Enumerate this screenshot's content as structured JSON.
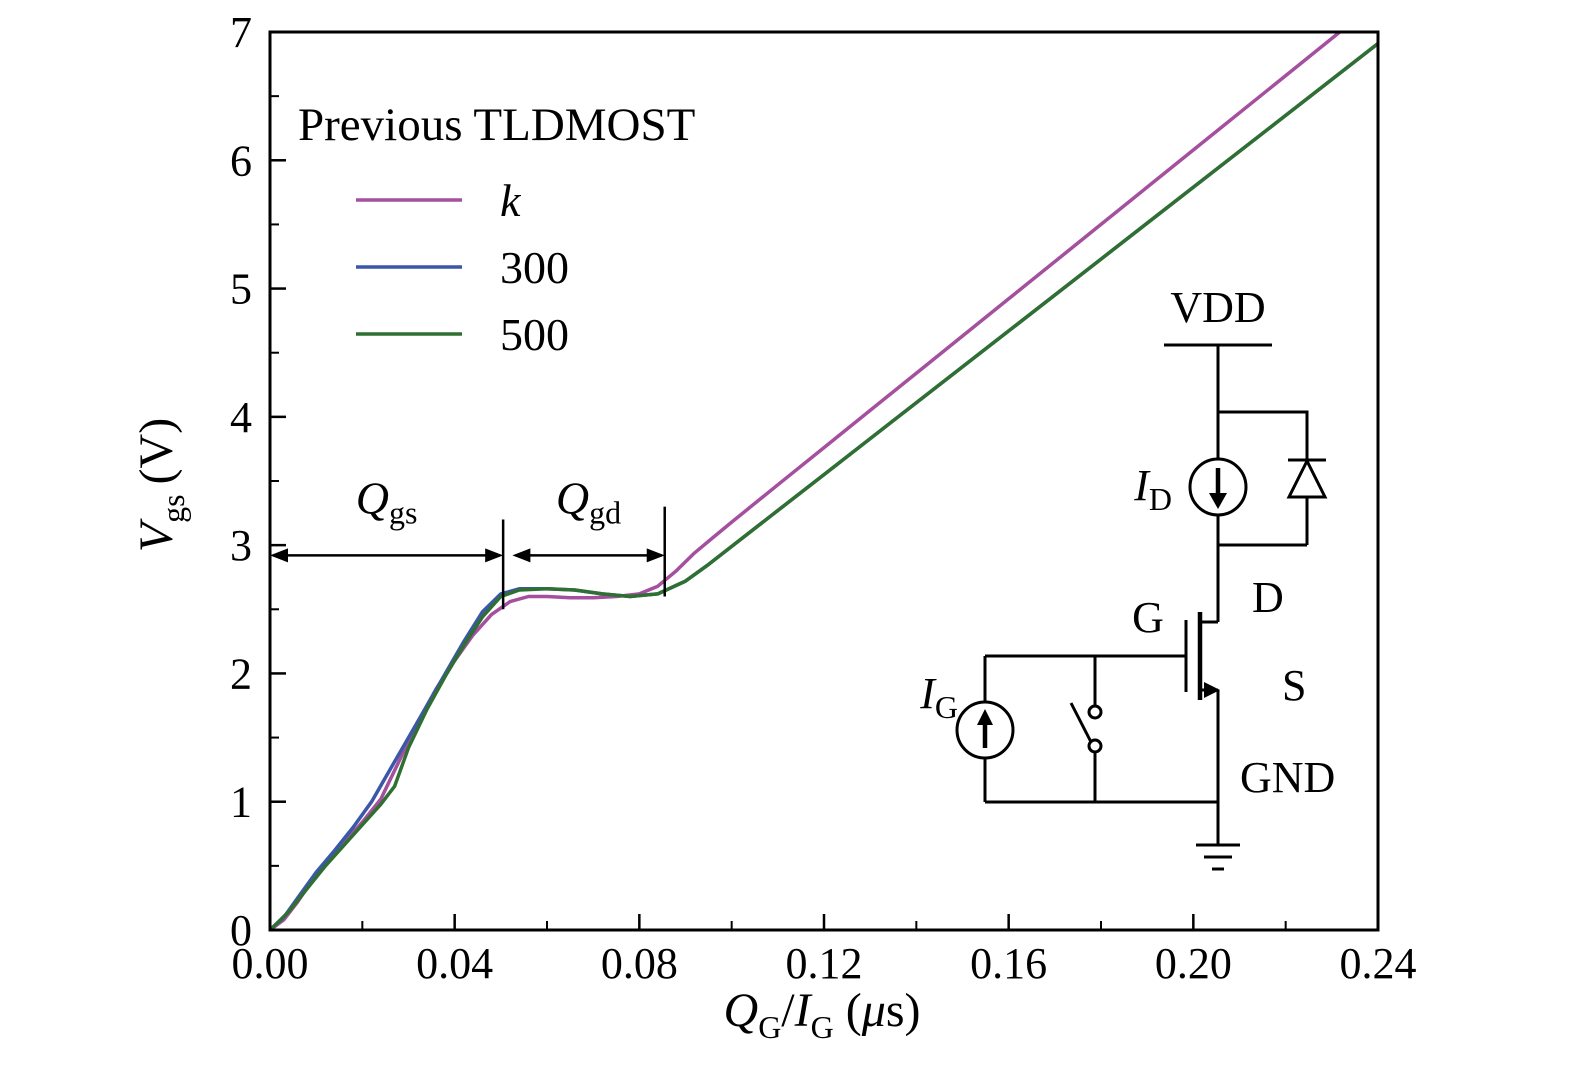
{
  "chart_data": {
    "type": "line",
    "title": "",
    "xlabel": "Q_G/I_G (us)",
    "ylabel": "V_gs (V)",
    "xlim": [
      0,
      0.24
    ],
    "ylim": [
      0,
      7
    ],
    "x_ticks": [
      0,
      0.04,
      0.08,
      0.12,
      0.16,
      0.2,
      0.24
    ],
    "x_tick_labels": [
      "0.00",
      "0.04",
      "0.08",
      "0.12",
      "0.16",
      "0.20",
      "0.24"
    ],
    "x_minor_step": 0.02,
    "y_ticks": [
      0,
      1,
      2,
      3,
      4,
      5,
      6,
      7
    ],
    "y_tick_labels": [
      "0",
      "1",
      "2",
      "3",
      "4",
      "5",
      "6",
      "7"
    ],
    "y_minor_step": 0.5,
    "grid": false,
    "legend_position": "upper-left",
    "series": [
      {
        "name": "k",
        "color": "#a4509e",
        "points": [
          [
            0,
            0
          ],
          [
            0.003,
            0.08
          ],
          [
            0.006,
            0.22
          ],
          [
            0.009,
            0.38
          ],
          [
            0.012,
            0.52
          ],
          [
            0.016,
            0.68
          ],
          [
            0.02,
            0.84
          ],
          [
            0.024,
            1.02
          ],
          [
            0.028,
            1.32
          ],
          [
            0.032,
            1.62
          ],
          [
            0.036,
            1.88
          ],
          [
            0.04,
            2.1
          ],
          [
            0.044,
            2.3
          ],
          [
            0.048,
            2.46
          ],
          [
            0.052,
            2.56
          ],
          [
            0.056,
            2.6
          ],
          [
            0.06,
            2.6
          ],
          [
            0.065,
            2.59
          ],
          [
            0.07,
            2.59
          ],
          [
            0.075,
            2.6
          ],
          [
            0.08,
            2.62
          ],
          [
            0.084,
            2.68
          ],
          [
            0.088,
            2.8
          ],
          [
            0.092,
            2.94
          ],
          [
            0.096,
            3.06
          ],
          [
            0.1,
            3.18
          ],
          [
            0.11,
            3.47
          ],
          [
            0.12,
            3.76
          ],
          [
            0.14,
            4.34
          ],
          [
            0.16,
            4.92
          ],
          [
            0.18,
            5.5
          ],
          [
            0.2,
            6.08
          ],
          [
            0.22,
            6.66
          ],
          [
            0.24,
            7.24
          ]
        ]
      },
      {
        "name": "300",
        "color": "#3b57a8",
        "points": [
          [
            0,
            0
          ],
          [
            0.003,
            0.1
          ],
          [
            0.006,
            0.25
          ],
          [
            0.01,
            0.45
          ],
          [
            0.014,
            0.62
          ],
          [
            0.018,
            0.8
          ],
          [
            0.022,
            1.0
          ],
          [
            0.026,
            1.25
          ],
          [
            0.03,
            1.5
          ],
          [
            0.034,
            1.75
          ],
          [
            0.038,
            2.0
          ],
          [
            0.042,
            2.25
          ],
          [
            0.046,
            2.48
          ],
          [
            0.05,
            2.62
          ],
          [
            0.054,
            2.66
          ],
          [
            0.06,
            2.66
          ],
          [
            0.066,
            2.65
          ],
          [
            0.072,
            2.62
          ],
          [
            0.078,
            2.6
          ],
          [
            0.084,
            2.62
          ],
          [
            0.09,
            2.72
          ],
          [
            0.095,
            2.85
          ],
          [
            0.1,
            2.99
          ],
          [
            0.11,
            3.27
          ],
          [
            0.12,
            3.55
          ],
          [
            0.14,
            4.11
          ],
          [
            0.16,
            4.67
          ],
          [
            0.18,
            5.23
          ],
          [
            0.2,
            5.79
          ],
          [
            0.22,
            6.35
          ],
          [
            0.24,
            6.91
          ]
        ]
      },
      {
        "name": "500",
        "color": "#2f7032",
        "points": [
          [
            0,
            0
          ],
          [
            0.004,
            0.14
          ],
          [
            0.008,
            0.32
          ],
          [
            0.012,
            0.5
          ],
          [
            0.016,
            0.66
          ],
          [
            0.02,
            0.82
          ],
          [
            0.024,
            0.98
          ],
          [
            0.027,
            1.12
          ],
          [
            0.03,
            1.42
          ],
          [
            0.034,
            1.72
          ],
          [
            0.038,
            1.98
          ],
          [
            0.042,
            2.22
          ],
          [
            0.046,
            2.44
          ],
          [
            0.05,
            2.6
          ],
          [
            0.054,
            2.65
          ],
          [
            0.06,
            2.66
          ],
          [
            0.066,
            2.65
          ],
          [
            0.072,
            2.62
          ],
          [
            0.078,
            2.6
          ],
          [
            0.084,
            2.62
          ],
          [
            0.09,
            2.72
          ],
          [
            0.095,
            2.85
          ],
          [
            0.1,
            2.99
          ],
          [
            0.11,
            3.27
          ],
          [
            0.12,
            3.55
          ],
          [
            0.14,
            4.11
          ],
          [
            0.16,
            4.67
          ],
          [
            0.18,
            5.23
          ],
          [
            0.2,
            5.79
          ],
          [
            0.22,
            6.35
          ],
          [
            0.24,
            6.91
          ]
        ]
      }
    ],
    "annotations": {
      "spans": [
        {
          "label": "Q",
          "sub": "gs",
          "x1": 0,
          "x2": 0.0505,
          "y": 2.92
        },
        {
          "label": "Q",
          "sub": "gd",
          "x1": 0.0525,
          "x2": 0.0855,
          "y": 2.92
        }
      ],
      "markers": [
        {
          "x": 0.0505,
          "y1": 2.5,
          "y2": 3.2
        },
        {
          "x": 0.0855,
          "y1": 2.6,
          "y2": 3.3
        }
      ]
    }
  },
  "legend": {
    "title": "Previous TLDMOST"
  },
  "labels": {
    "y": {
      "v": "V",
      "sub": "gs",
      "unit": "(V)"
    },
    "x": {
      "q": "Q",
      "qsub": "G",
      "slash": "/",
      "i": "I",
      "isub": "G",
      "open": "(",
      "mu": "μ",
      "close": "s)"
    }
  },
  "circuit": {
    "vdd": "VDD",
    "gnd": "GND",
    "gate": "G",
    "drain": "D",
    "source": "S",
    "id_main": "I",
    "id_sub": "D",
    "ig_main": "I",
    "ig_sub": "G"
  }
}
